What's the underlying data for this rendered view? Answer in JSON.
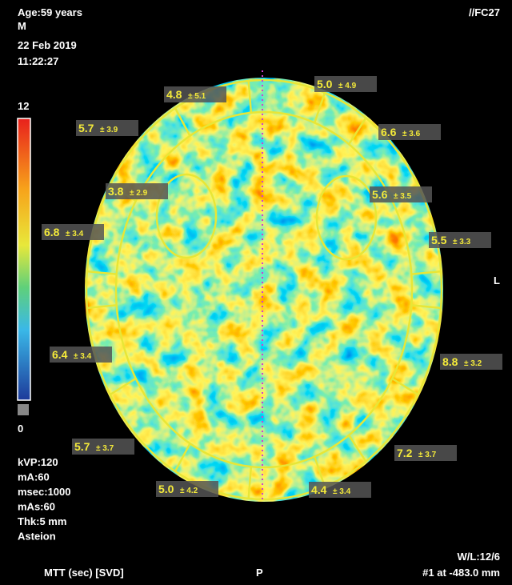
{
  "header": {
    "age": "Age:59 years",
    "sex": "M",
    "date": "22 Feb 2019",
    "time": "11:22:27",
    "id": "//FC27"
  },
  "colorbar": {
    "max": "12",
    "min": "0"
  },
  "side_marker": "L",
  "rois": [
    {
      "mean": "4.8",
      "spread": "± 5.1"
    },
    {
      "mean": "5.0",
      "spread": "± 4.9"
    },
    {
      "mean": "5.7",
      "spread": "± 3.9"
    },
    {
      "mean": "6.6",
      "spread": "± 3.6"
    },
    {
      "mean": "3.8",
      "spread": "± 2.9"
    },
    {
      "mean": "5.6",
      "spread": "± 3.5"
    },
    {
      "mean": "6.8",
      "spread": "± 3.4"
    },
    {
      "mean": "5.5",
      "spread": "± 3.3"
    },
    {
      "mean": "6.4",
      "spread": "± 3.4"
    },
    {
      "mean": "8.8",
      "spread": "± 3.2"
    },
    {
      "mean": "5.7",
      "spread": "± 3.7"
    },
    {
      "mean": "7.2",
      "spread": "± 3.7"
    },
    {
      "mean": "5.0",
      "spread": "± 4.2"
    },
    {
      "mean": "4.4",
      "spread": "± 3.4"
    }
  ],
  "scan": [
    "kVP:120",
    "mA:60",
    "msec:1000",
    "mAs:60",
    "Thk:5 mm",
    "Asteion"
  ],
  "footer": {
    "map": "MTT (sec) [SVD]",
    "orientation": "P",
    "window": "W/L:12/6",
    "slice": "#1 at -483.0 mm"
  }
}
